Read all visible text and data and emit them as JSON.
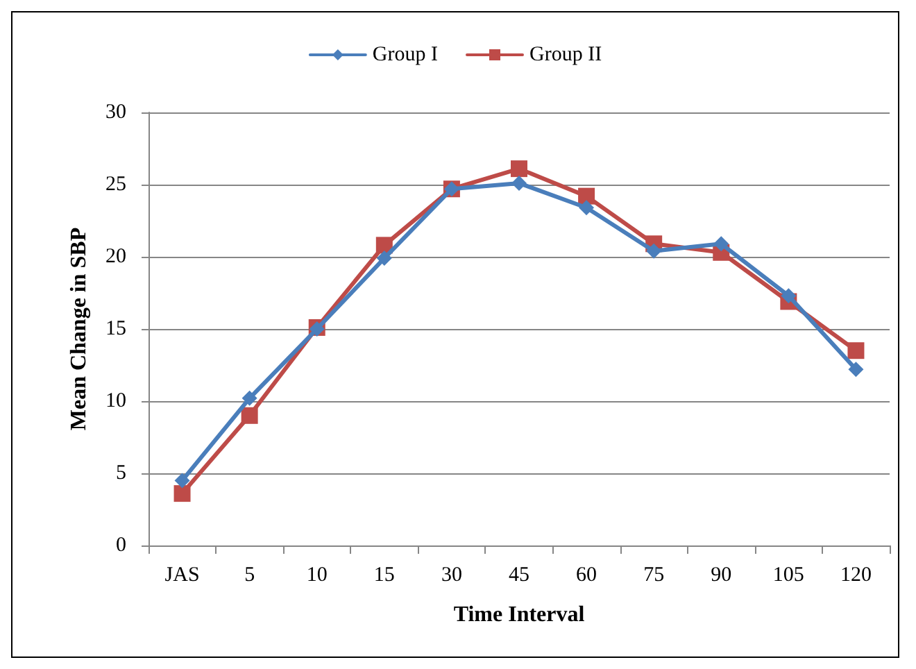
{
  "chart_data": {
    "type": "line",
    "xlabel": "Time Interval",
    "ylabel": "Mean Change in SBP",
    "categories": [
      "JAS",
      "5",
      "10",
      "15",
      "30",
      "45",
      "60",
      "75",
      "90",
      "105",
      "120"
    ],
    "series": [
      {
        "name": "Group I",
        "color": "#4a7ebb",
        "marker": "diamond",
        "values": [
          4.5,
          10.2,
          15,
          19.9,
          24.7,
          25.1,
          23.4,
          20.4,
          20.9,
          17.3,
          12.2
        ]
      },
      {
        "name": "Group II",
        "color": "#be4b48",
        "marker": "square",
        "values": [
          3.6,
          9,
          15.1,
          20.8,
          24.7,
          26.1,
          24.2,
          20.9,
          20.3,
          16.9,
          13.5
        ]
      }
    ],
    "ylim": [
      0,
      30
    ],
    "yticks": [
      0,
      5,
      10,
      15,
      20,
      25,
      30
    ],
    "grid": "y",
    "legend": "top",
    "line_style": "solid"
  }
}
